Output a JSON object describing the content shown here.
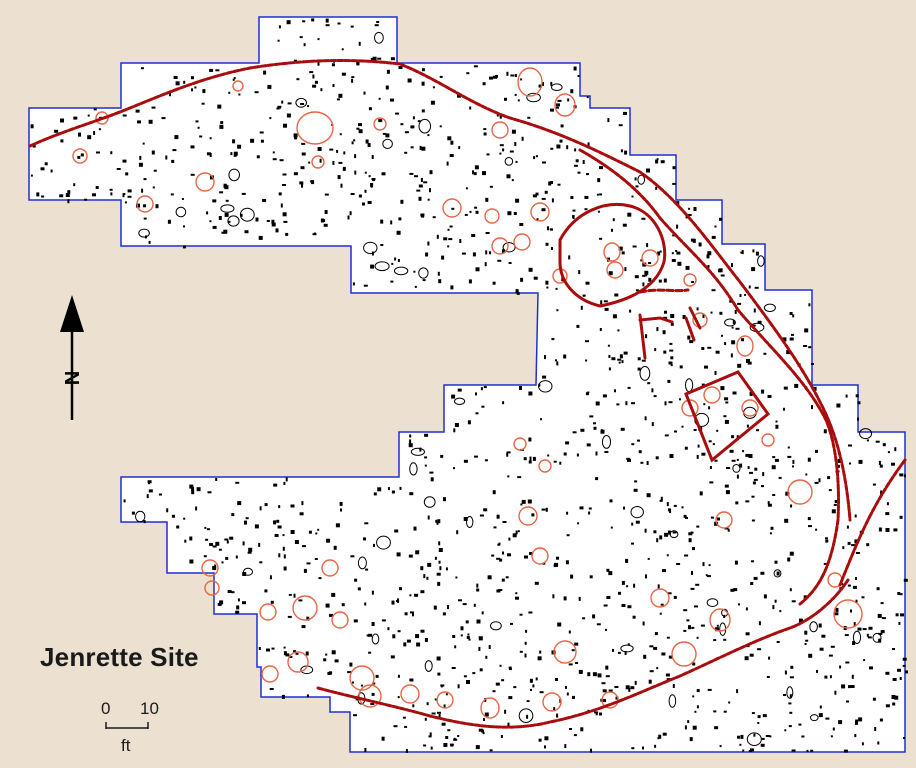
{
  "map": {
    "title": "Jenrette Site",
    "north_label": "N",
    "scale": {
      "start_label": "0",
      "end_label": "10",
      "unit_label": "ft"
    }
  },
  "colors": {
    "background": "#ece0d1",
    "excavation_fill": "#ffffff",
    "excavation_outline": "#1f2fd6",
    "postmold": "#000000",
    "feature_pit": "#e86545",
    "palisade_line": "#a80c0c",
    "arrow": "#000000"
  }
}
